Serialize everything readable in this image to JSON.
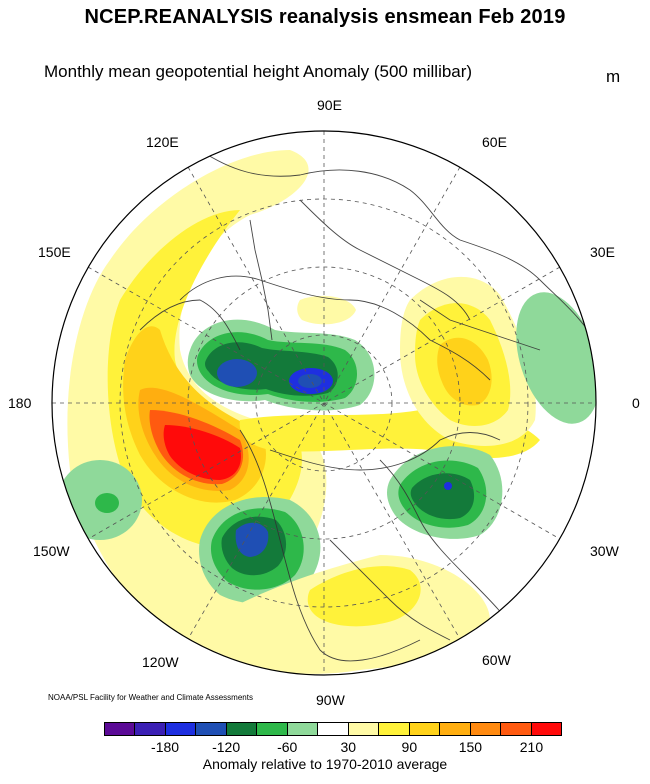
{
  "title": "NCEP.REANALYSIS reanalysis ensmean Feb 2019",
  "subtitle": "Monthly mean geopotential height Anomaly (500 millibar)",
  "units": "m",
  "credit": "NOAA/PSL Facility for Weather and Climate Assessments",
  "longitude_labels": {
    "lon_90e": "90E",
    "lon_60e": "60E",
    "lon_30e": "30E",
    "lon_0": "0",
    "lon_30w": "30W",
    "lon_60w": "60W",
    "lon_90w": "90W",
    "lon_120w": "120W",
    "lon_150w": "150W",
    "lon_180": "180",
    "lon_150e": "150E",
    "lon_120e": "120E"
  },
  "colorbar": {
    "caption": "Anomaly relative to 1970-2010 average",
    "colors": [
      "#5b0a96",
      "#3b1fb4",
      "#1e2fe0",
      "#1f4fb4",
      "#137a3a",
      "#2eb84a",
      "#8fd99a",
      "#ffffff",
      "#fffaa6",
      "#fff23a",
      "#ffd21a",
      "#ffae10",
      "#ff8a10",
      "#ff5a10",
      "#ff0a0a"
    ],
    "tick_labels": [
      "-180",
      "-120",
      "-60",
      "30",
      "90",
      "150",
      "210"
    ]
  }
}
